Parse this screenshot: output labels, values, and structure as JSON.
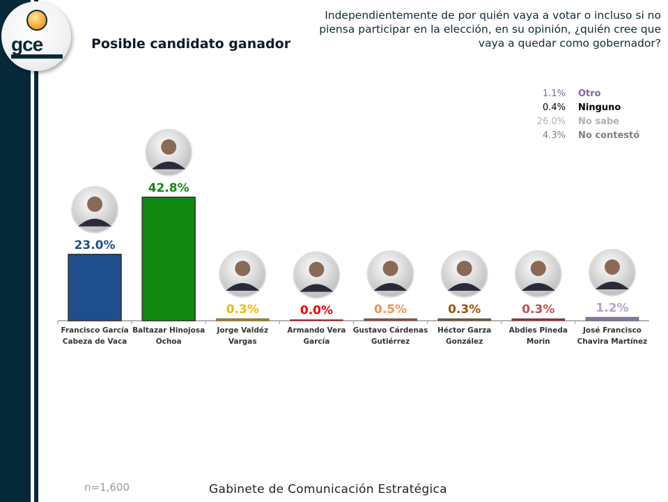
{
  "header": {
    "title": "Posible candidato ganador",
    "question": "Independientemente de por quién vaya a votar o incluso si no piensa participar en la elección, en su opinión, ¿quién cree que vaya a quedar como gobernador?",
    "logo_text": "GCE",
    "logo_subtitle": "Gabinete de Comunicación Estratégica"
  },
  "legend": [
    {
      "value": "1.1%",
      "label": "Otro",
      "color": "#8064a2"
    },
    {
      "value": "0.4%",
      "label": "Ninguno",
      "color": "#000000"
    },
    {
      "value": "26.0%",
      "label": "No sabe",
      "color": "#b0b0b0"
    },
    {
      "value": "4.3%",
      "label": "No contestó",
      "color": "#7f7f7f"
    }
  ],
  "chart_data": {
    "type": "bar",
    "title": "Posible candidato ganador",
    "categories": [
      [
        "Francisco García",
        "Cabeza de Vaca"
      ],
      [
        "Baltazar Hinojosa",
        "Ochoa"
      ],
      [
        "Jorge Valdéz",
        "Vargas"
      ],
      [
        "Armando Vera",
        "García"
      ],
      [
        "Gustavo Cárdenas",
        "Gutiérrez"
      ],
      [
        "Héctor Garza",
        "González"
      ],
      [
        "Abdies Pineda",
        "Morin"
      ],
      [
        "José Francisco",
        "Chavira Martínez"
      ]
    ],
    "values": [
      23.0,
      42.8,
      0.3,
      0.0,
      0.5,
      0.3,
      0.3,
      1.2
    ],
    "labels": [
      "23.0%",
      "42.8%",
      "0.3%",
      "0.0%",
      "0.5%",
      "0.3%",
      "0.3%",
      "1.2%"
    ],
    "bar_colors": [
      "#1f4e8c",
      "#118811",
      "#b8860b",
      "#cc0000",
      "#a0522d",
      "#7b5a3a",
      "#a0302d",
      "#8878a8"
    ],
    "label_colors": [
      "#1f4e8c",
      "#118811",
      "#f5b800",
      "#ee0000",
      "#f4915a",
      "#a0520a",
      "#c0504d",
      "#b3a2c7"
    ],
    "grid": false,
    "ylim": [
      0,
      45
    ]
  },
  "footer": {
    "sample": "n=1,600",
    "org": "Gabinete de Comunicación Estratégica"
  }
}
